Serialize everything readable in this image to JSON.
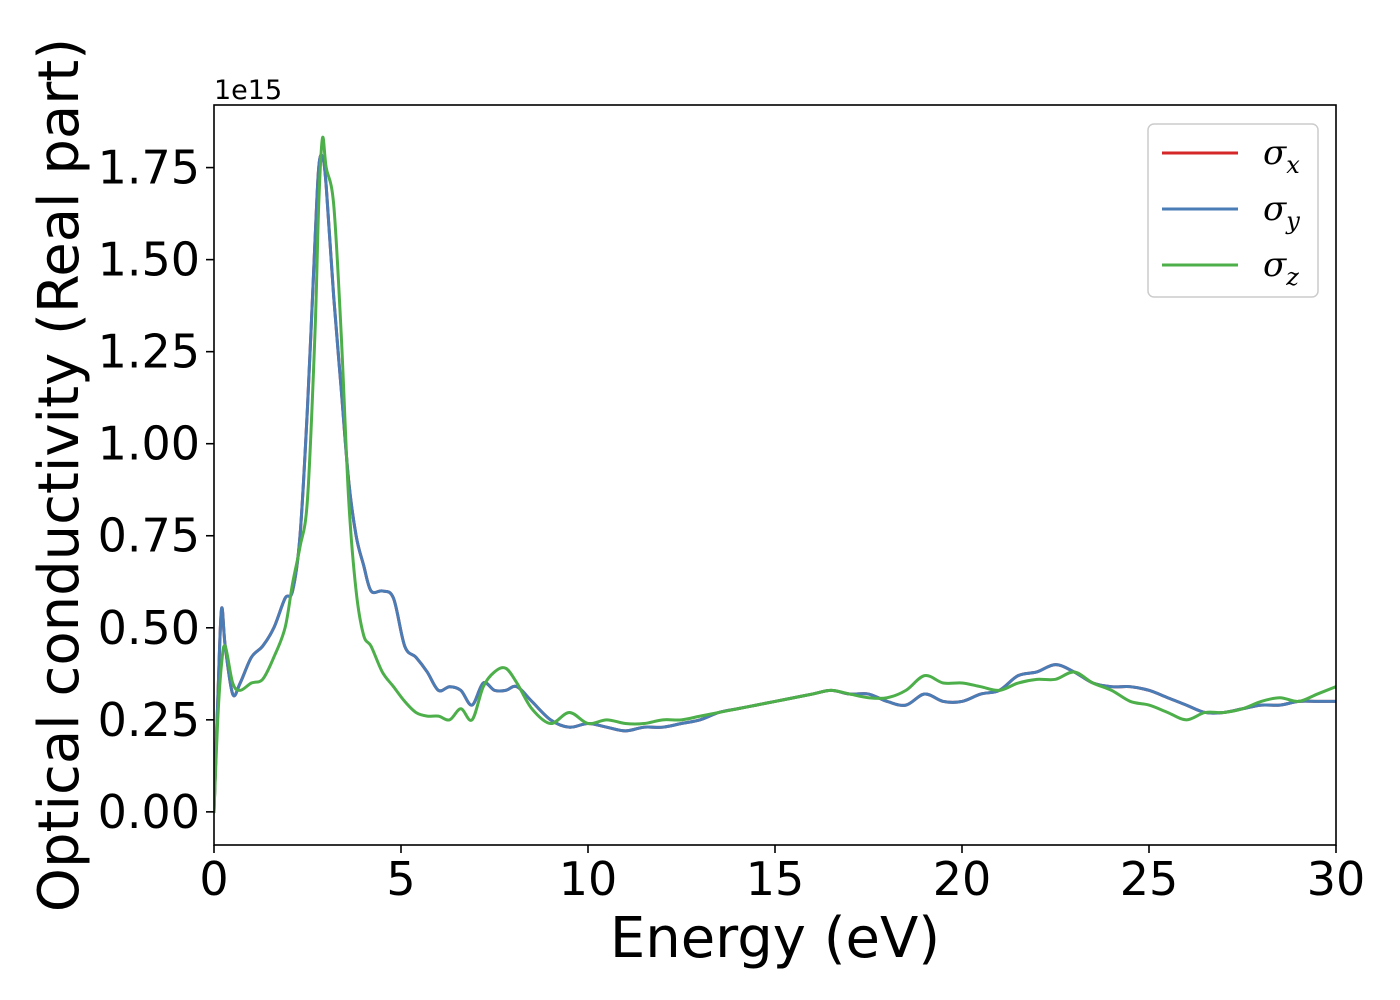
{
  "chart_data": {
    "type": "line",
    "xlabel": "Energy (eV)",
    "ylabel": "Optical conductivity (Real part)",
    "y_offset_text": "1e15",
    "xlim": [
      0,
      30
    ],
    "ylim": [
      -0.09,
      1.92
    ],
    "x_ticks": [
      0,
      5,
      10,
      15,
      20,
      25,
      30
    ],
    "x_tick_labels": [
      "0",
      "5",
      "10",
      "15",
      "20",
      "25",
      "30"
    ],
    "y_ticks": [
      0.0,
      0.25,
      0.5,
      0.75,
      1.0,
      1.25,
      1.5,
      1.75
    ],
    "y_tick_labels": [
      "0.00",
      "0.25",
      "0.50",
      "0.75",
      "1.00",
      "1.25",
      "1.50",
      "1.75"
    ],
    "grid": false,
    "legend_position": "upper-right",
    "series": [
      {
        "name": "σ_x",
        "symbol": "σ",
        "subscript": "x",
        "color": "#d62728",
        "x": [
          0,
          0.1,
          0.2,
          0.3,
          0.5,
          0.7,
          1.0,
          1.3,
          1.6,
          1.9,
          2.1,
          2.3,
          2.5,
          2.7,
          2.8,
          2.9,
          3.0,
          3.2,
          3.4,
          3.6,
          3.8,
          4.0,
          4.2,
          4.5,
          4.8,
          5.1,
          5.4,
          5.7,
          6.0,
          6.3,
          6.6,
          6.9,
          7.2,
          7.5,
          7.8,
          8.1,
          8.5,
          9.0,
          9.5,
          10.0,
          10.5,
          11.0,
          11.5,
          12.0,
          12.5,
          13.0,
          13.5,
          14.0,
          14.5,
          15.0,
          15.5,
          16.0,
          16.5,
          17.0,
          17.5,
          18.0,
          18.5,
          19.0,
          19.5,
          20.0,
          20.5,
          21.0,
          21.5,
          22.0,
          22.5,
          23.0,
          23.5,
          24.0,
          24.5,
          25.0,
          25.5,
          26.0,
          26.5,
          27.0,
          27.5,
          28.0,
          28.5,
          29.0,
          29.5,
          30.0
        ],
        "y": [
          0.0,
          0.3,
          0.55,
          0.45,
          0.32,
          0.35,
          0.42,
          0.45,
          0.5,
          0.58,
          0.6,
          0.75,
          1.1,
          1.55,
          1.75,
          1.78,
          1.7,
          1.4,
          1.15,
          0.9,
          0.75,
          0.67,
          0.6,
          0.6,
          0.58,
          0.45,
          0.42,
          0.38,
          0.33,
          0.34,
          0.33,
          0.29,
          0.35,
          0.33,
          0.33,
          0.34,
          0.3,
          0.25,
          0.23,
          0.24,
          0.23,
          0.22,
          0.23,
          0.23,
          0.24,
          0.25,
          0.27,
          0.28,
          0.29,
          0.3,
          0.31,
          0.32,
          0.33,
          0.32,
          0.32,
          0.3,
          0.29,
          0.32,
          0.3,
          0.3,
          0.32,
          0.33,
          0.37,
          0.38,
          0.4,
          0.38,
          0.35,
          0.34,
          0.34,
          0.33,
          0.31,
          0.29,
          0.27,
          0.27,
          0.28,
          0.29,
          0.29,
          0.3,
          0.3,
          0.3
        ]
      },
      {
        "name": "σ_y",
        "symbol": "σ",
        "subscript": "y",
        "color": "#4a7db5",
        "x": [
          0,
          0.1,
          0.2,
          0.3,
          0.5,
          0.7,
          1.0,
          1.3,
          1.6,
          1.9,
          2.1,
          2.3,
          2.5,
          2.7,
          2.8,
          2.9,
          3.0,
          3.2,
          3.4,
          3.6,
          3.8,
          4.0,
          4.2,
          4.5,
          4.8,
          5.1,
          5.4,
          5.7,
          6.0,
          6.3,
          6.6,
          6.9,
          7.2,
          7.5,
          7.8,
          8.1,
          8.5,
          9.0,
          9.5,
          10.0,
          10.5,
          11.0,
          11.5,
          12.0,
          12.5,
          13.0,
          13.5,
          14.0,
          14.5,
          15.0,
          15.5,
          16.0,
          16.5,
          17.0,
          17.5,
          18.0,
          18.5,
          19.0,
          19.5,
          20.0,
          20.5,
          21.0,
          21.5,
          22.0,
          22.5,
          23.0,
          23.5,
          24.0,
          24.5,
          25.0,
          25.5,
          26.0,
          26.5,
          27.0,
          27.5,
          28.0,
          28.5,
          29.0,
          29.5,
          30.0
        ],
        "y": [
          0.0,
          0.3,
          0.55,
          0.45,
          0.32,
          0.35,
          0.42,
          0.45,
          0.5,
          0.58,
          0.6,
          0.75,
          1.1,
          1.55,
          1.75,
          1.78,
          1.7,
          1.4,
          1.15,
          0.9,
          0.75,
          0.67,
          0.6,
          0.6,
          0.58,
          0.45,
          0.42,
          0.38,
          0.33,
          0.34,
          0.33,
          0.29,
          0.35,
          0.33,
          0.33,
          0.34,
          0.3,
          0.25,
          0.23,
          0.24,
          0.23,
          0.22,
          0.23,
          0.23,
          0.24,
          0.25,
          0.27,
          0.28,
          0.29,
          0.3,
          0.31,
          0.32,
          0.33,
          0.32,
          0.32,
          0.3,
          0.29,
          0.32,
          0.3,
          0.3,
          0.32,
          0.33,
          0.37,
          0.38,
          0.4,
          0.38,
          0.35,
          0.34,
          0.34,
          0.33,
          0.31,
          0.29,
          0.27,
          0.27,
          0.28,
          0.29,
          0.29,
          0.3,
          0.3,
          0.3
        ]
      },
      {
        "name": "σ_z",
        "symbol": "σ",
        "subscript": "z",
        "color": "#4daf4a",
        "x": [
          0,
          0.1,
          0.2,
          0.3,
          0.5,
          0.7,
          1.0,
          1.3,
          1.6,
          1.9,
          2.1,
          2.3,
          2.5,
          2.7,
          2.8,
          2.9,
          3.0,
          3.2,
          3.4,
          3.6,
          3.8,
          4.0,
          4.2,
          4.5,
          4.8,
          5.1,
          5.4,
          5.7,
          6.0,
          6.3,
          6.6,
          6.9,
          7.2,
          7.5,
          7.8,
          8.1,
          8.5,
          9.0,
          9.5,
          10.0,
          10.5,
          11.0,
          11.5,
          12.0,
          12.5,
          13.0,
          13.5,
          14.0,
          14.5,
          15.0,
          15.5,
          16.0,
          16.5,
          17.0,
          17.5,
          18.0,
          18.5,
          19.0,
          19.5,
          20.0,
          20.5,
          21.0,
          21.5,
          22.0,
          22.5,
          23.0,
          23.5,
          24.0,
          24.5,
          25.0,
          25.5,
          26.0,
          26.5,
          27.0,
          27.5,
          28.0,
          28.5,
          29.0,
          29.5,
          30.0
        ],
        "y": [
          0.0,
          0.25,
          0.4,
          0.45,
          0.35,
          0.33,
          0.35,
          0.36,
          0.42,
          0.5,
          0.62,
          0.72,
          0.85,
          1.3,
          1.65,
          1.83,
          1.75,
          1.65,
          1.3,
          0.85,
          0.6,
          0.48,
          0.45,
          0.38,
          0.34,
          0.3,
          0.27,
          0.26,
          0.26,
          0.25,
          0.28,
          0.25,
          0.34,
          0.38,
          0.39,
          0.35,
          0.28,
          0.24,
          0.27,
          0.24,
          0.25,
          0.24,
          0.24,
          0.25,
          0.25,
          0.26,
          0.27,
          0.28,
          0.29,
          0.3,
          0.31,
          0.32,
          0.33,
          0.32,
          0.31,
          0.31,
          0.33,
          0.37,
          0.35,
          0.35,
          0.34,
          0.33,
          0.35,
          0.36,
          0.36,
          0.38,
          0.35,
          0.33,
          0.3,
          0.29,
          0.27,
          0.25,
          0.27,
          0.27,
          0.28,
          0.3,
          0.31,
          0.3,
          0.32,
          0.34
        ]
      }
    ]
  }
}
